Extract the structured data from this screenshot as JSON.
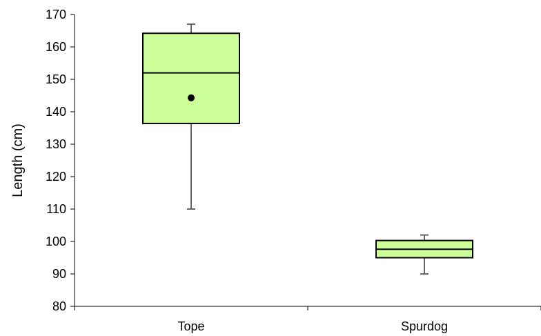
{
  "chart_data": {
    "type": "box",
    "title": "",
    "xlabel": "",
    "ylabel": "Length (cm)",
    "ylim": [
      80,
      170
    ],
    "yticks": [
      80,
      90,
      100,
      110,
      120,
      130,
      140,
      150,
      160,
      170
    ],
    "grid": false,
    "legend": "none",
    "box_fill": "#ccff99",
    "box_stroke": "#000000",
    "whisker_color": "#666666",
    "mean_marker_color": "#000000",
    "categories": [
      "Tope",
      "Spurdog"
    ],
    "boxes": [
      {
        "label": "Tope",
        "min": 110,
        "q1": 136.4,
        "median": 152,
        "q3": 164.2,
        "max": 167,
        "mean": 144.3
      },
      {
        "label": "Spurdog",
        "min": 90,
        "q1": 95,
        "median": 97.6,
        "q3": 100.3,
        "max": 102
      }
    ]
  }
}
